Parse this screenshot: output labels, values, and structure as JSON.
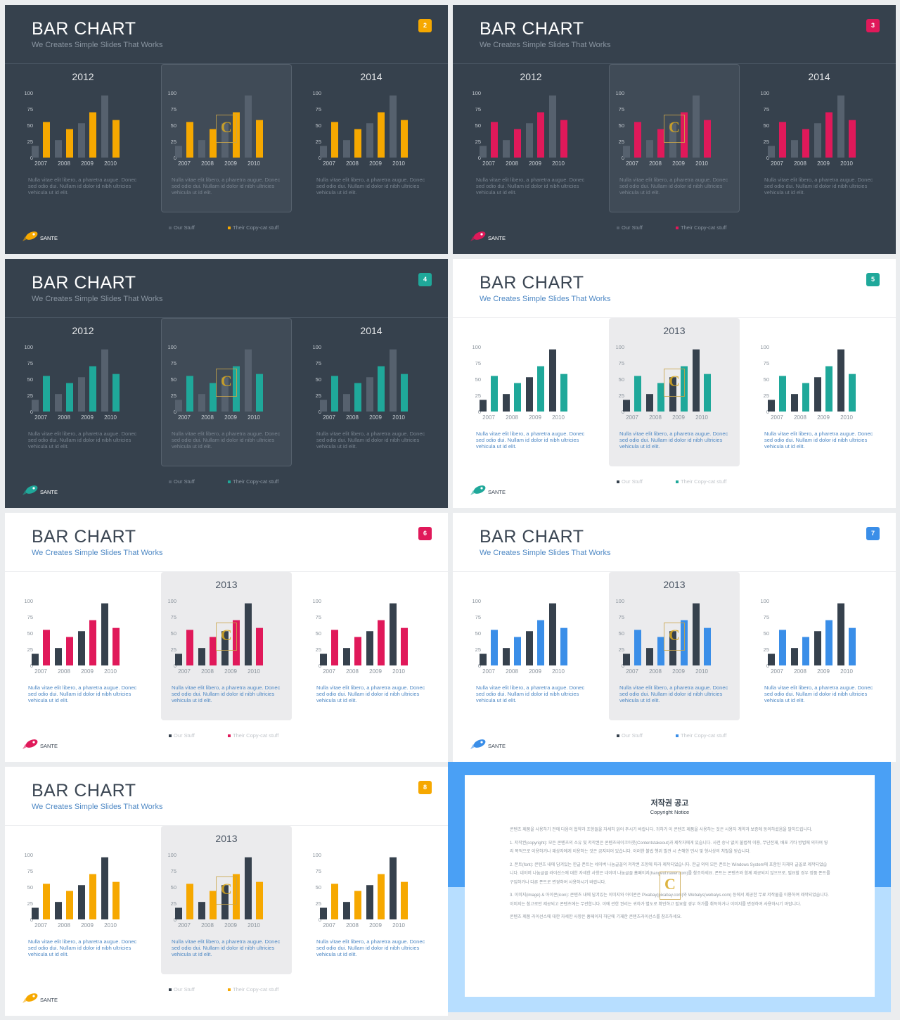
{
  "slides": [
    {
      "number": "2",
      "theme": "dark",
      "accent": "#f6a800",
      "title": "BAR CHART",
      "subtitle": "We Creates Simple Slides That Works",
      "chart_titles": [
        "2012",
        "",
        "2014"
      ],
      "legend": {
        "our_stuff": "Our Stuff",
        "their_stuff": "Their Copy-cat stuff"
      },
      "logo_text": "SANTE"
    },
    {
      "number": "3",
      "theme": "dark",
      "accent": "#e0195a",
      "title": "BAR CHART",
      "subtitle": "We Creates Simple Slides That Works",
      "chart_titles": [
        "2012",
        "",
        "2014"
      ],
      "legend": {
        "our_stuff": "Our Stuff",
        "their_stuff": "Their Copy-cat stuff"
      },
      "logo_text": "SANTE"
    },
    {
      "number": "4",
      "theme": "dark",
      "accent": "#1fa89a",
      "title": "BAR CHART",
      "subtitle": "We Creates Simple Slides That Works",
      "chart_titles": [
        "2012",
        "",
        "2014"
      ],
      "legend": {
        "our_stuff": "Our Stuff",
        "their_stuff": "Their Copy-cat stuff"
      },
      "logo_text": "SANTE"
    },
    {
      "number": "5",
      "theme": "light",
      "accent": "#1fa89a",
      "title": "BAR CHART",
      "subtitle": "We Creates Simple Slides That Works",
      "chart_titles": [
        "",
        "2013",
        ""
      ],
      "legend": {
        "our_stuff": "Our Stuff",
        "their_stuff": "Their Copy-cat stuff"
      },
      "logo_text": "SANTE"
    },
    {
      "number": "6",
      "theme": "light",
      "accent": "#e0195a",
      "title": "BAR CHART",
      "subtitle": "We Creates Simple Slides That Works",
      "chart_titles": [
        "",
        "2013",
        ""
      ],
      "legend": {
        "our_stuff": "Our Stuff",
        "their_stuff": "Their Copy-cat stuff"
      },
      "logo_text": "SANTE"
    },
    {
      "number": "7",
      "theme": "light",
      "accent": "#3a8ee8",
      "title": "BAR CHART",
      "subtitle": "We Creates Simple Slides That Works",
      "chart_titles": [
        "",
        "2013",
        ""
      ],
      "legend": {
        "our_stuff": "Our Stuff",
        "their_stuff": "Their Copy-cat stuff"
      },
      "logo_text": "SANTE"
    },
    {
      "number": "8",
      "theme": "light",
      "accent": "#f6a800",
      "title": "BAR CHART",
      "subtitle": "We Creates Simple Slides That Works",
      "chart_titles": [
        "",
        "2013",
        ""
      ],
      "legend": {
        "our_stuff": "Our Stuff",
        "their_stuff": "Their Copy-cat stuff"
      },
      "logo_text": "SANTE"
    }
  ],
  "chart_text": {
    "description": "Nulla vitae elit libero, a pharetra augue. Donec sed odio dui. Nullam id dolor id nibh ultricies vehicula ut id elit."
  },
  "chart_data": {
    "type": "bar",
    "categories": [
      "2007",
      "2008",
      "2009",
      "2010"
    ],
    "yticks": [
      "0",
      "25",
      "50",
      "75",
      "100"
    ],
    "ylim": [
      0,
      100
    ],
    "series": [
      {
        "name": "Our Stuff",
        "values": [
          18,
          27,
          53,
          96
        ]
      },
      {
        "name": "Their Copy-cat stuff",
        "values": [
          55,
          44,
          70,
          58
        ]
      }
    ],
    "dark_our_color": "#56616e",
    "light_our_color": "#36414d"
  },
  "watermark_letter": "C",
  "notice": {
    "title": "저작권 공고",
    "subtitle": "Copyright Notice",
    "p1": "콘텐츠 제품을 사용하기 전에 다음의 협약과 조항들을 자세히 읽어 주시기 바랍니다. 귀하가 이 콘텐츠 제품을 사용하는 것은 사용자 계약과 보증에 동의하셨음을 말하드립니다.",
    "p2": "1. 저작권(copyright): 모든 콘텐츠의 소유 및 저작권은 콘텐츠테이크아웃(Contentstakeout)과 제작자에게 있습니다. 사전 승낙 없이 불법적 이용, 무단전재, 배포 기타 방법에 의하여 영리 목적으로 이용하거나 재상자에게 이용하는 것은 금지되어 있습니다. 이러한 불법 행위 발견 시 손해한 민사 및 형사상의 처벌을 받습니다.",
    "p3": "2. 폰트(font): 콘텐츠 내에 담겨있는 한글 폰트는 네이버 나눔글꼴의 저작권 조항에 따라 제작되었습니다. 한글 외의 모든 폰트는 Windows System에 포함된 자체의 글꼴로 제작되었습니다. 네이버 나눔글꼴 라이선스에 대한 자세한 사항은 네이버 나눔글꼴 홈페이지(hangeul.naver.com)를 참조하세요. 폰트는 콘텐츠와 함께 제공되지 않으므로, 필요할 경우 정품 폰트를 구입하거나 다른 폰트로 변경하여 사용하시기 바랍니다.",
    "p4": "3. 이미지(image) & 아이콘(icon): 콘텐츠 내에 담겨있는 이미지와 아이콘은 Pixabay(pixabay.com)와 Webalys(webalys.com) 등에서 제공한 무료 저작물을 이용하여 제작되었습니다. 이미지는 참고로만 제공되고 콘텐츠에는 무관합니다. 이에 관한 권리는 귀하가 별도로 확인하고 필요할 경우 허가를 취득하거나 이미지를 변경하여 사용하시기 바랍니다.",
    "p5": "콘텐츠 제품 라이선스에 대한 자세한 사항은 홈페이지 하단에 기재한 콘텐츠라이선스를 참조하세요."
  }
}
